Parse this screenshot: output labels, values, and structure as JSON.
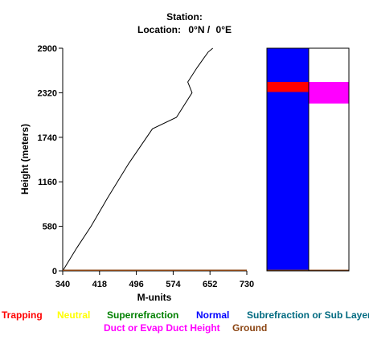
{
  "header": {
    "station_label": "Station:",
    "location_label": "Location:",
    "lat": "0°N",
    "sep": "/",
    "lon": "0°E"
  },
  "chart_data": {
    "type": "line",
    "title": "",
    "xlabel": "M-units",
    "ylabel": "Height (meters)",
    "xlim": [
      340,
      730
    ],
    "ylim": [
      0,
      2900
    ],
    "x_ticks": [
      340,
      418,
      496,
      574,
      652,
      730
    ],
    "y_ticks": [
      0,
      580,
      1160,
      1740,
      2320,
      2900
    ],
    "series": [
      {
        "color": "#000000",
        "points": [
          [
            340,
            0
          ],
          [
            350,
            100
          ],
          [
            370,
            300
          ],
          [
            400,
            580
          ],
          [
            435,
            950
          ],
          [
            480,
            1400
          ],
          [
            530,
            1850
          ],
          [
            581,
            2000
          ],
          [
            614,
            2320
          ],
          [
            605,
            2460
          ],
          [
            625,
            2650
          ],
          [
            648,
            2850
          ],
          [
            658,
            2900
          ]
        ]
      },
      {
        "name": "Ground",
        "color": "#8b4513",
        "points": [
          [
            340,
            8
          ],
          [
            730,
            8
          ]
        ]
      }
    ],
    "side_bar": {
      "left_column": [
        {
          "from": 0,
          "to": 2900,
          "class": "Normal",
          "color": "#0000ff"
        },
        {
          "from": 2330,
          "to": 2460,
          "class": "Trapping",
          "color": "#ff0000"
        },
        {
          "from": 0,
          "to": 15,
          "class": "Ground",
          "color": "#8b4513"
        }
      ],
      "right_column": [
        {
          "from": 2180,
          "to": 2460,
          "class": "Duct or Evap Duct Height",
          "color": "#ff00ff"
        },
        {
          "from": 0,
          "to": 15,
          "class": "Ground",
          "color": "#8b4513"
        }
      ]
    },
    "legend": {
      "row1": [
        {
          "label": "Trapping",
          "color": "#ff0000"
        },
        {
          "label": "Neutral",
          "color": "#ffff00"
        },
        {
          "label": "Superrefraction",
          "color": "#008000"
        },
        {
          "label": "Normal",
          "color": "#0000ff"
        },
        {
          "label": "Subrefraction or Sub Layer",
          "color": "#006a80"
        }
      ],
      "row2": [
        {
          "label": "Duct or Evap Duct Height",
          "color": "#ff00ff"
        },
        {
          "label": "Ground",
          "color": "#8b4513"
        }
      ]
    }
  }
}
